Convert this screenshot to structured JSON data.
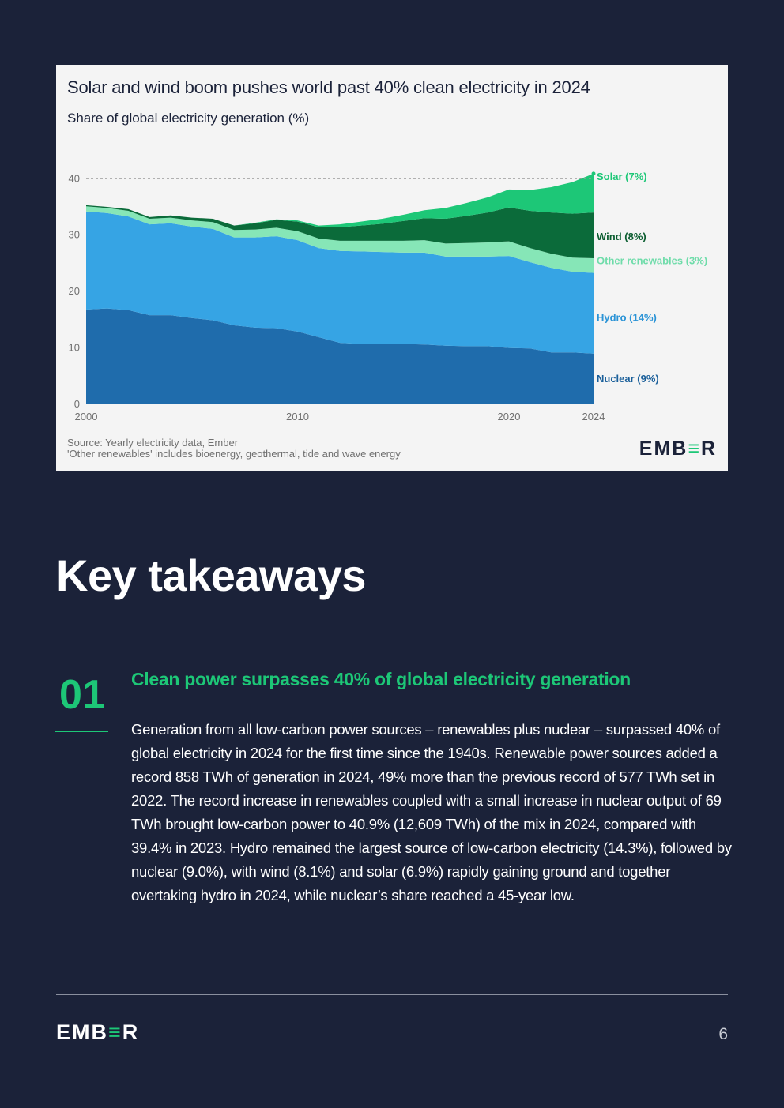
{
  "chart": {
    "title": "Solar and wind boom pushes world past 40% clean electricity in 2024",
    "subtitle": "Share of global electricity generation (%)",
    "source_line1": "Source: Yearly electricity data, Ember",
    "source_line2": "'Other renewables' includes bioenergy, geothermal, tide and wave energy",
    "logo_text_pre": "EMB",
    "logo_text_accent": "≡",
    "logo_text_post": "R"
  },
  "chart_data": {
    "type": "area",
    "title": "Solar and wind boom pushes world past 40% clean electricity in 2024",
    "subtitle": "Share of global electricity generation (%)",
    "stacked": true,
    "x": [
      2000,
      2001,
      2002,
      2003,
      2004,
      2005,
      2006,
      2007,
      2008,
      2009,
      2010,
      2011,
      2012,
      2013,
      2014,
      2015,
      2016,
      2017,
      2018,
      2019,
      2020,
      2021,
      2022,
      2023,
      2024
    ],
    "x_ticks": [
      2000,
      2010,
      2020,
      2024
    ],
    "y_ticks": [
      0,
      10,
      20,
      30,
      40
    ],
    "ylim": [
      0,
      42
    ],
    "reference_line": 40,
    "series": [
      {
        "name": "Nuclear",
        "label": "Nuclear (9%)",
        "color": "#1f6cac",
        "values": [
          16.8,
          17.0,
          16.7,
          15.8,
          15.8,
          15.3,
          14.9,
          14.0,
          13.6,
          13.5,
          12.9,
          11.9,
          10.9,
          10.7,
          10.7,
          10.7,
          10.6,
          10.4,
          10.3,
          10.3,
          10.0,
          9.9,
          9.2,
          9.2,
          9.0
        ]
      },
      {
        "name": "Hydro",
        "label": "Hydro (14%)",
        "color": "#36a4e4",
        "values": [
          17.4,
          16.9,
          16.6,
          16.1,
          16.3,
          16.2,
          16.2,
          15.6,
          16.0,
          16.3,
          16.2,
          15.8,
          16.3,
          16.4,
          16.3,
          16.2,
          16.3,
          15.8,
          15.9,
          15.9,
          16.3,
          15.3,
          15.0,
          14.3,
          14.3
        ]
      },
      {
        "name": "Other renewables",
        "label": "Other renewables (3%)",
        "color": "#86e6b7",
        "values": [
          0.9,
          0.9,
          1.0,
          1.0,
          1.0,
          1.1,
          1.2,
          1.3,
          1.4,
          1.5,
          1.6,
          1.7,
          1.8,
          1.9,
          2.0,
          2.1,
          2.2,
          2.3,
          2.4,
          2.5,
          2.6,
          2.5,
          2.5,
          2.5,
          2.6
        ]
      },
      {
        "name": "Wind",
        "label": "Wind (8%)",
        "color": "#0b6b3a",
        "values": [
          0.2,
          0.2,
          0.3,
          0.3,
          0.4,
          0.5,
          0.6,
          0.8,
          1.1,
          1.4,
          1.7,
          2.0,
          2.4,
          2.7,
          3.0,
          3.5,
          3.9,
          4.4,
          4.8,
          5.3,
          6.0,
          6.6,
          7.3,
          7.8,
          8.1
        ]
      },
      {
        "name": "Solar",
        "label": "Solar (7%)",
        "color": "#1dc777",
        "values": [
          0.0,
          0.0,
          0.0,
          0.0,
          0.0,
          0.0,
          0.0,
          0.0,
          0.1,
          0.1,
          0.2,
          0.3,
          0.5,
          0.7,
          0.9,
          1.1,
          1.4,
          1.9,
          2.3,
          2.7,
          3.2,
          3.7,
          4.5,
          5.6,
          6.9
        ]
      }
    ],
    "grid": false,
    "legend": "right, inline labels"
  },
  "section": {
    "heading": "Key takeaways"
  },
  "takeaway": {
    "number": "01",
    "heading": "Clean power surpasses 40% of global electricity generation",
    "body": "Generation from all low-carbon power sources – renewables plus nuclear – surpassed 40% of global electricity in 2024 for the first time since the 1940s. Renewable power sources added a record 858 TWh of generation in 2024, 49% more than the previous record of 577 TWh set in 2022. The record increase in renewables coupled with a small increase in nuclear output of 69 TWh brought low-carbon power to 40.9% (12,609 TWh) of the mix in 2024, compared with 39.4% in 2023. Hydro remained the largest source of low-carbon electricity (14.3%), followed by nuclear (9.0%), with wind (8.1%) and solar (6.9%) rapidly gaining ground and together overtaking hydro in 2024, while nuclear’s share reached a 45-year low."
  },
  "footer": {
    "logo_text_pre": "EMB",
    "logo_text_accent": "≡",
    "logo_text_post": "R",
    "page_number": "6"
  },
  "colors": {
    "background": "#1b2239",
    "accent": "#1dc777",
    "card": "#f4f4f4"
  }
}
